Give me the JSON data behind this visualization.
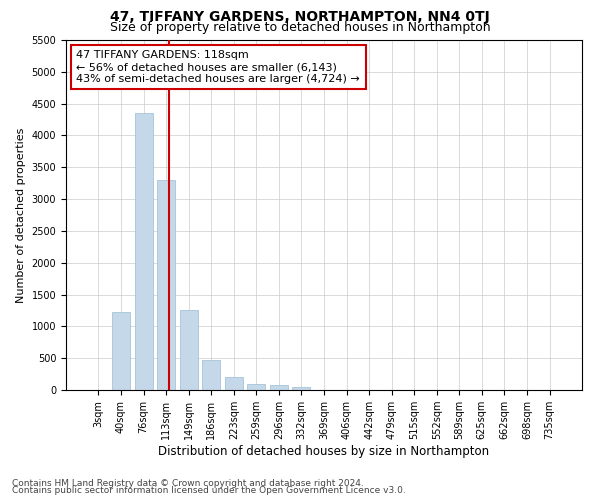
{
  "title": "47, TIFFANY GARDENS, NORTHAMPTON, NN4 0TJ",
  "subtitle": "Size of property relative to detached houses in Northampton",
  "xlabel": "Distribution of detached houses by size in Northampton",
  "ylabel": "Number of detached properties",
  "categories": [
    "3sqm",
    "40sqm",
    "76sqm",
    "113sqm",
    "149sqm",
    "186sqm",
    "223sqm",
    "259sqm",
    "296sqm",
    "332sqm",
    "369sqm",
    "406sqm",
    "442sqm",
    "479sqm",
    "515sqm",
    "552sqm",
    "589sqm",
    "625sqm",
    "662sqm",
    "698sqm",
    "735sqm"
  ],
  "values": [
    0,
    1220,
    4350,
    3300,
    1250,
    475,
    205,
    100,
    75,
    50,
    0,
    0,
    0,
    0,
    0,
    0,
    0,
    0,
    0,
    0,
    0
  ],
  "bar_color": "#c5d8ea",
  "bar_edge_color": "#9bbdd4",
  "vline_color": "#cc0000",
  "ylim": [
    0,
    5500
  ],
  "yticks": [
    0,
    500,
    1000,
    1500,
    2000,
    2500,
    3000,
    3500,
    4000,
    4500,
    5000,
    5500
  ],
  "annotation_line1": "47 TIFFANY GARDENS: 118sqm",
  "annotation_line2": "← 56% of detached houses are smaller (6,143)",
  "annotation_line3": "43% of semi-detached houses are larger (4,724) →",
  "annotation_box_color": "#ffffff",
  "annotation_box_edge": "#cc0000",
  "footer1": "Contains HM Land Registry data © Crown copyright and database right 2024.",
  "footer2": "Contains public sector information licensed under the Open Government Licence v3.0.",
  "bg_color": "#ffffff",
  "grid_color": "#cccccc",
  "title_fontsize": 10,
  "subtitle_fontsize": 9,
  "xlabel_fontsize": 8.5,
  "ylabel_fontsize": 8,
  "tick_fontsize": 7,
  "footer_fontsize": 6.5,
  "ann_fontsize": 8
}
